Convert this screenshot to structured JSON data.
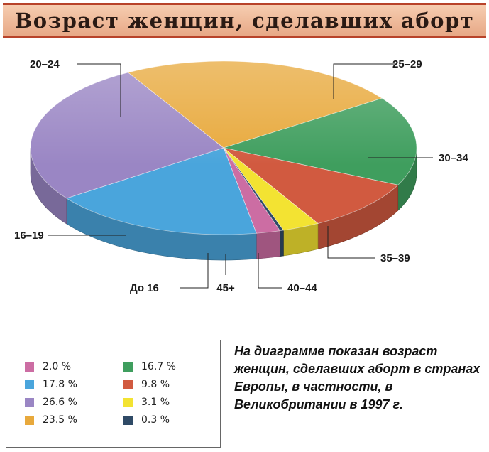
{
  "title": "Возраст женщин, сделавших аборт",
  "caption": "На диаграмме показан возраст женщин, сделавших аборт в странах Европы, в частности, в Великобритании в 1997 г.",
  "chart_data": {
    "type": "pie",
    "title": "Возраст женщин, сделавших аборт",
    "slices": [
      {
        "label": "До 16",
        "value": 2.0,
        "value_label": "2.0 %",
        "color": "#cc6da3"
      },
      {
        "label": "16–19",
        "value": 17.8,
        "value_label": "17.8 %",
        "color": "#4aa5dc"
      },
      {
        "label": "20–24",
        "value": 26.6,
        "value_label": "26.6 %",
        "color": "#9a86c4"
      },
      {
        "label": "25–29",
        "value": 23.5,
        "value_label": "23.5 %",
        "color": "#e8a93c"
      },
      {
        "label": "30–34",
        "value": 16.7,
        "value_label": "16.7 %",
        "color": "#3f9e5e"
      },
      {
        "label": "35–39",
        "value": 9.8,
        "value_label": "9.8 %",
        "color": "#d15a40"
      },
      {
        "label": "40–44",
        "value": 3.1,
        "value_label": "3.1 %",
        "color": "#f3e332"
      },
      {
        "label": "45+",
        "value": 0.3,
        "value_label": "0.3 %",
        "color": "#2f4a66"
      }
    ],
    "legend": {
      "placement": "bottom-left",
      "columns": [
        [
          "2.0 %",
          "17.8 %",
          "26.6 %",
          "23.5 %"
        ],
        [
          "16.7 %",
          "9.8 %",
          "3.1 %",
          "0.3 %"
        ]
      ]
    }
  }
}
